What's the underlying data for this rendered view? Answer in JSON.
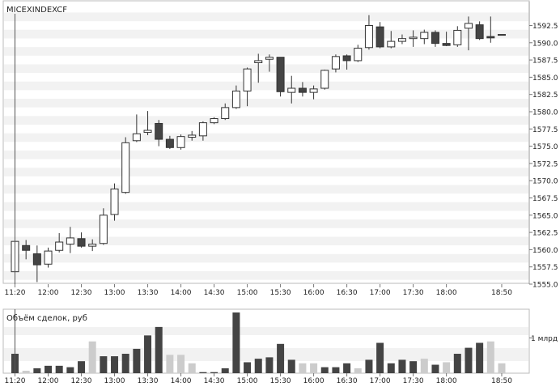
{
  "chart_data": [
    {
      "type": "candlestick",
      "title": "MICEXINDEXCF",
      "ylim": [
        1555.0,
        1594.2
      ],
      "y_ticks": [
        1555.0,
        1557.5,
        1560.0,
        1562.5,
        1565.0,
        1567.5,
        1570.0,
        1572.5,
        1575.0,
        1577.5,
        1580.0,
        1582.5,
        1585.0,
        1587.5,
        1590.0,
        1592.5
      ],
      "y_tick_labels": [
        "1555.0",
        "1557.5",
        "1560.0",
        "1562.5",
        "1565.0",
        "1567.5",
        "1570.0",
        "1572.5",
        "1575.0",
        "1577.5",
        "1580.0",
        "1582.5",
        "1585.0",
        "1587.5",
        "1590.0",
        "1592.5"
      ],
      "x_tick_labels": [
        "11:20",
        "12:00",
        "12:30",
        "13:00",
        "13:30",
        "14:00",
        "14:30",
        "15:00",
        "15:30",
        "16:00",
        "16:30",
        "17:00",
        "17:30",
        "18:00",
        "18:50"
      ],
      "x_tick_bar_index": [
        0,
        3,
        6,
        9,
        12,
        15,
        18,
        21,
        24,
        27,
        30,
        33,
        36,
        39,
        44
      ],
      "grid": "horizontal bands",
      "candles": [
        {
          "t": 0,
          "o": 1556.8,
          "h": 1563.0,
          "l": 1555.8,
          "c": 1561.2
        },
        {
          "t": 1,
          "o": 1560.6,
          "h": 1561.4,
          "l": 1558.6,
          "c": 1559.9
        },
        {
          "t": 2,
          "o": 1559.4,
          "h": 1560.6,
          "l": 1555.3,
          "c": 1557.8
        },
        {
          "t": 3,
          "o": 1557.9,
          "h": 1560.3,
          "l": 1557.4,
          "c": 1559.8
        },
        {
          "t": 4,
          "o": 1559.9,
          "h": 1562.4,
          "l": 1559.6,
          "c": 1561.1
        },
        {
          "t": 5,
          "o": 1560.8,
          "h": 1563.3,
          "l": 1559.5,
          "c": 1561.7
        },
        {
          "t": 6,
          "o": 1561.6,
          "h": 1562.5,
          "l": 1560.3,
          "c": 1560.5
        },
        {
          "t": 7,
          "o": 1560.5,
          "h": 1561.5,
          "l": 1559.8,
          "c": 1560.8
        },
        {
          "t": 8,
          "o": 1560.9,
          "h": 1566.0,
          "l": 1560.7,
          "c": 1565.0
        },
        {
          "t": 9,
          "o": 1565.1,
          "h": 1569.6,
          "l": 1564.2,
          "c": 1568.8
        },
        {
          "t": 10,
          "o": 1568.3,
          "h": 1576.3,
          "l": 1568.1,
          "c": 1575.5
        },
        {
          "t": 11,
          "o": 1575.8,
          "h": 1579.6,
          "l": 1575.6,
          "c": 1576.8
        },
        {
          "t": 12,
          "o": 1577.0,
          "h": 1580.1,
          "l": 1576.6,
          "c": 1577.3
        },
        {
          "t": 13,
          "o": 1578.3,
          "h": 1578.8,
          "l": 1575.0,
          "c": 1576.0
        },
        {
          "t": 14,
          "o": 1576.0,
          "h": 1576.5,
          "l": 1574.6,
          "c": 1574.8
        },
        {
          "t": 15,
          "o": 1574.8,
          "h": 1576.7,
          "l": 1574.5,
          "c": 1576.4
        },
        {
          "t": 16,
          "o": 1576.3,
          "h": 1577.2,
          "l": 1575.8,
          "c": 1576.6
        },
        {
          "t": 17,
          "o": 1576.5,
          "h": 1578.6,
          "l": 1575.8,
          "c": 1578.4
        },
        {
          "t": 18,
          "o": 1578.4,
          "h": 1579.2,
          "l": 1578.2,
          "c": 1579.0
        },
        {
          "t": 19,
          "o": 1579.0,
          "h": 1581.2,
          "l": 1578.8,
          "c": 1580.6
        },
        {
          "t": 20,
          "o": 1580.6,
          "h": 1583.8,
          "l": 1580.4,
          "c": 1583.0
        },
        {
          "t": 21,
          "o": 1583.0,
          "h": 1586.4,
          "l": 1580.8,
          "c": 1586.2
        },
        {
          "t": 22,
          "o": 1587.1,
          "h": 1588.4,
          "l": 1584.2,
          "c": 1587.4
        },
        {
          "t": 23,
          "o": 1587.6,
          "h": 1588.3,
          "l": 1585.8,
          "c": 1587.9
        },
        {
          "t": 24,
          "o": 1587.9,
          "h": 1587.9,
          "l": 1582.2,
          "c": 1582.9
        },
        {
          "t": 25,
          "o": 1582.8,
          "h": 1585.2,
          "l": 1581.2,
          "c": 1583.4
        },
        {
          "t": 26,
          "o": 1583.4,
          "h": 1584.3,
          "l": 1582.2,
          "c": 1582.8
        },
        {
          "t": 27,
          "o": 1582.8,
          "h": 1583.8,
          "l": 1581.8,
          "c": 1583.3
        },
        {
          "t": 28,
          "o": 1583.4,
          "h": 1586.1,
          "l": 1583.2,
          "c": 1586.0
        },
        {
          "t": 29,
          "o": 1586.2,
          "h": 1588.3,
          "l": 1585.7,
          "c": 1588.0
        },
        {
          "t": 30,
          "o": 1588.1,
          "h": 1588.3,
          "l": 1586.1,
          "c": 1587.4
        },
        {
          "t": 31,
          "o": 1587.4,
          "h": 1589.7,
          "l": 1587.2,
          "c": 1589.2
        },
        {
          "t": 32,
          "o": 1589.3,
          "h": 1594.0,
          "l": 1589.0,
          "c": 1592.5
        },
        {
          "t": 33,
          "o": 1592.3,
          "h": 1593.0,
          "l": 1589.2,
          "c": 1589.4
        },
        {
          "t": 34,
          "o": 1589.4,
          "h": 1591.7,
          "l": 1589.2,
          "c": 1590.2
        },
        {
          "t": 35,
          "o": 1590.2,
          "h": 1591.2,
          "l": 1589.8,
          "c": 1590.6
        },
        {
          "t": 36,
          "o": 1590.6,
          "h": 1591.8,
          "l": 1589.4,
          "c": 1590.8
        },
        {
          "t": 37,
          "o": 1590.6,
          "h": 1591.9,
          "l": 1589.8,
          "c": 1591.5
        },
        {
          "t": 38,
          "o": 1591.5,
          "h": 1591.8,
          "l": 1589.4,
          "c": 1589.9
        },
        {
          "t": 39,
          "o": 1589.9,
          "h": 1591.6,
          "l": 1589.5,
          "c": 1589.6
        },
        {
          "t": 40,
          "o": 1589.7,
          "h": 1592.4,
          "l": 1589.4,
          "c": 1591.8
        },
        {
          "t": 41,
          "o": 1592.1,
          "h": 1593.8,
          "l": 1588.9,
          "c": 1592.8
        },
        {
          "t": 42,
          "o": 1592.6,
          "h": 1593.1,
          "l": 1590.4,
          "c": 1590.6
        },
        {
          "t": 43,
          "o": 1590.9,
          "h": 1593.8,
          "l": 1590.0,
          "c": 1590.7
        },
        {
          "t": 44,
          "o": 1591.2,
          "h": 1591.2,
          "l": 1591.2,
          "c": 1591.2
        }
      ],
      "colors": {
        "up_body": "#ffffff",
        "down_body": "#444444",
        "wick": "#333333",
        "band": "#f2f2f2"
      }
    },
    {
      "type": "bar",
      "title": "Объём сделок, руб",
      "y_tick_labels": [
        "1 млрд"
      ],
      "y_ticks": [
        1.0
      ],
      "ylim": [
        0,
        1.72
      ],
      "x_tick_labels": [
        "11:20",
        "12:00",
        "12:30",
        "13:00",
        "13:30",
        "14:00",
        "14:30",
        "15:00",
        "15:30",
        "16:00",
        "16:30",
        "17:00",
        "17:30",
        "18:00",
        "18:50"
      ],
      "x_tick_bar_index": [
        0,
        3,
        6,
        9,
        12,
        15,
        18,
        21,
        24,
        27,
        30,
        33,
        36,
        39,
        44
      ],
      "values": [
        0.55,
        0.07,
        0.14,
        0.21,
        0.21,
        0.17,
        0.34,
        0.9,
        0.48,
        0.48,
        0.55,
        0.69,
        1.07,
        1.31,
        0.52,
        0.52,
        0.28,
        0.03,
        0.03,
        0.14,
        1.72,
        0.31,
        0.41,
        0.45,
        0.83,
        0.38,
        0.28,
        0.28,
        0.17,
        0.17,
        0.28,
        0.14,
        0.38,
        0.86,
        0.28,
        0.38,
        0.34,
        0.41,
        0.24,
        0.31,
        0.55,
        0.72,
        0.86,
        0.9,
        0.28
      ],
      "bar_colors": [
        "#444444",
        "#cccccc",
        "#444444",
        "#444444",
        "#444444",
        "#444444",
        "#444444",
        "#cccccc",
        "#444444",
        "#444444",
        "#444444",
        "#444444",
        "#444444",
        "#444444",
        "#cccccc",
        "#cccccc",
        "#cccccc",
        "#444444",
        "#444444",
        "#444444",
        "#444444",
        "#444444",
        "#444444",
        "#444444",
        "#444444",
        "#444444",
        "#cccccc",
        "#cccccc",
        "#444444",
        "#444444",
        "#444444",
        "#cccccc",
        "#444444",
        "#444444",
        "#444444",
        "#444444",
        "#444444",
        "#cccccc",
        "#444444",
        "#cccccc",
        "#444444",
        "#444444",
        "#444444",
        "#cccccc",
        "#cccccc"
      ]
    }
  ]
}
